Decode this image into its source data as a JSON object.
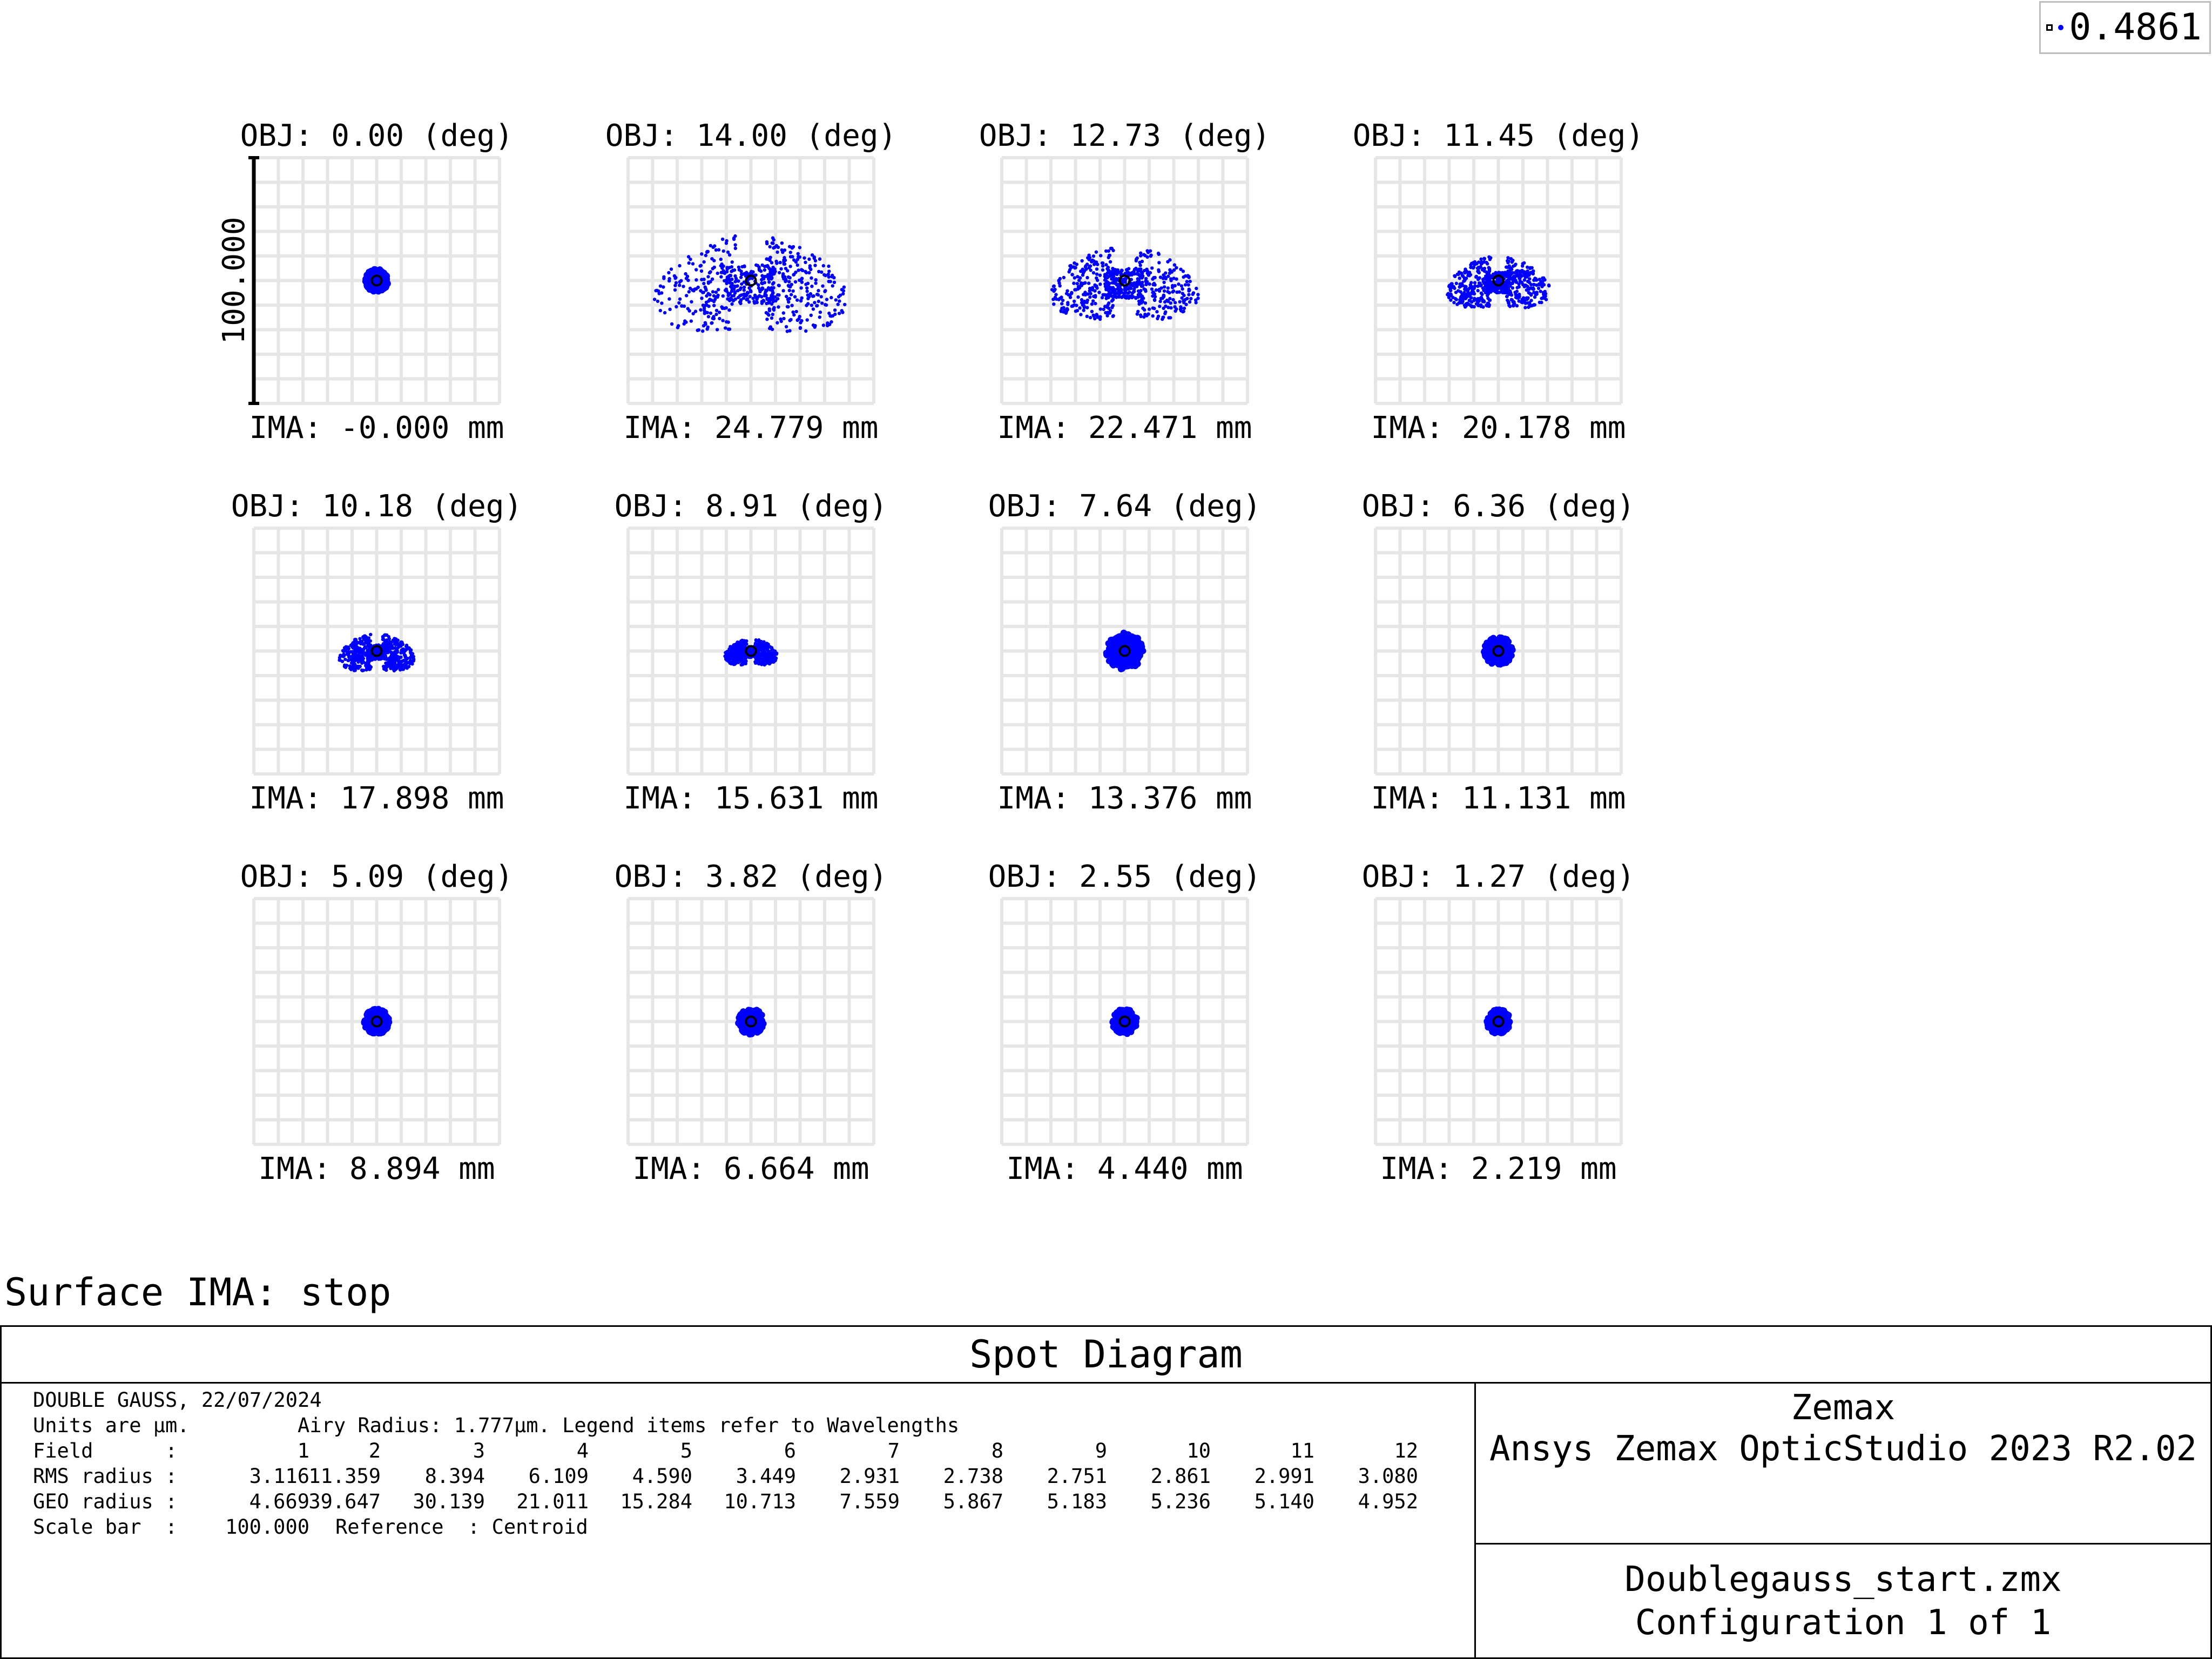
{
  "legend": {
    "value": "0.4861"
  },
  "surface_label": "Surface IMA: stop",
  "title": "Spot Diagram",
  "info": {
    "line1": "DOUBLE GAUSS, 22/07/2024",
    "units": "Units are µm.",
    "airy": "Airy Radius: 1.777µm. Legend items refer to Wavelengths",
    "field_label": "Field      :",
    "fields": [
      "1",
      "2",
      "3",
      "4",
      "5",
      "6",
      "7",
      "8",
      "9",
      "10",
      "11",
      "12"
    ],
    "rms_label": "RMS radius :",
    "rms": [
      "3.116",
      "11.359",
      "8.394",
      "6.109",
      "4.590",
      "3.449",
      "2.931",
      "2.738",
      "2.751",
      "2.861",
      "2.991",
      "3.080"
    ],
    "geo_label": "GEO radius :",
    "geo": [
      "4.669",
      "39.647",
      "30.139",
      "21.011",
      "15.284",
      "10.713",
      "7.559",
      "5.867",
      "5.183",
      "5.236",
      "5.140",
      "4.952"
    ],
    "scale_label": "Scale bar  :",
    "scale_value": "100.000",
    "reference": "Reference  : Centroid"
  },
  "brand": {
    "line1": "Zemax",
    "line2": "Ansys Zemax OpticStudio 2023 R2.02"
  },
  "file": {
    "name": "Doublegauss_start.zmx",
    "config": "Configuration 1 of 1"
  },
  "colors": {
    "spot": "#0000ff",
    "grid": "#e6e6e6",
    "centroid": "#000000"
  },
  "chart_data": {
    "type": "scatter",
    "scale_bar": "100.000",
    "scale_bar_value": 100,
    "wavelength": "0.4861",
    "panels": [
      {
        "obj": "OBJ: 0.00 (deg)",
        "ima": "IMA: -0.000 mm",
        "rms_um": 3.116,
        "geo_um": 4.669,
        "shape": "round"
      },
      {
        "obj": "OBJ: 14.00 (deg)",
        "ima": "IMA: 24.779 mm",
        "rms_um": 11.359,
        "geo_um": 39.647,
        "shape": "wing"
      },
      {
        "obj": "OBJ: 12.73 (deg)",
        "ima": "IMA: 22.471 mm",
        "rms_um": 8.394,
        "geo_um": 30.139,
        "shape": "wing"
      },
      {
        "obj": "OBJ: 11.45 (deg)",
        "ima": "IMA: 20.178 mm",
        "rms_um": 6.109,
        "geo_um": 21.011,
        "shape": "wing"
      },
      {
        "obj": "OBJ: 10.18 (deg)",
        "ima": "IMA: 17.898 mm",
        "rms_um": 4.59,
        "geo_um": 15.284,
        "shape": "wing"
      },
      {
        "obj": "OBJ: 8.91 (deg)",
        "ima": "IMA: 15.631 mm",
        "rms_um": 3.449,
        "geo_um": 10.713,
        "shape": "wing"
      },
      {
        "obj": "OBJ: 7.64 (deg)",
        "ima": "IMA: 13.376 mm",
        "rms_um": 2.931,
        "geo_um": 7.559,
        "shape": "round"
      },
      {
        "obj": "OBJ: 6.36 (deg)",
        "ima": "IMA: 11.131 mm",
        "rms_um": 2.738,
        "geo_um": 5.867,
        "shape": "round"
      },
      {
        "obj": "OBJ: 5.09 (deg)",
        "ima": "IMA: 8.894 mm",
        "rms_um": 2.751,
        "geo_um": 5.183,
        "shape": "round"
      },
      {
        "obj": "OBJ: 3.82 (deg)",
        "ima": "IMA: 6.664 mm",
        "rms_um": 2.861,
        "geo_um": 5.236,
        "shape": "round"
      },
      {
        "obj": "OBJ: 2.55 (deg)",
        "ima": "IMA: 4.440 mm",
        "rms_um": 2.991,
        "geo_um": 5.14,
        "shape": "round"
      },
      {
        "obj": "OBJ: 1.27 (deg)",
        "ima": "IMA: 2.219 mm",
        "rms_um": 3.08,
        "geo_um": 4.952,
        "shape": "round"
      }
    ]
  }
}
